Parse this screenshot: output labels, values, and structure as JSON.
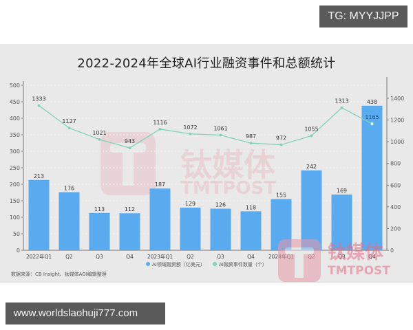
{
  "overlay": {
    "tag_label": "TG: MYYJJPP",
    "url_label": "www.worldslaohuji777.com"
  },
  "chart": {
    "title": "2022-2024年全球AI行业融资事件和总额统计",
    "source": "数据来源：CB Insight、钛媒体AGI编辑整理",
    "watermark_cn": "钛媒体",
    "watermark_en": "TMTPOST",
    "colors": {
      "bar": "#5aaaf0",
      "line": "#7dd3b5",
      "background": "#e9e9e9"
    }
  },
  "chart_data": {
    "type": "bar+line",
    "title": "2022-2024年全球AI行业融资事件和总额统计",
    "categories": [
      "2022年Q1",
      "Q2",
      "Q3",
      "Q4",
      "2023年Q1",
      "Q2",
      "Q3",
      "Q4",
      "2024年Q1",
      "Q2",
      "Q3",
      "Q4"
    ],
    "series": [
      {
        "name": "AI领域融资额（亿美元）",
        "type": "bar",
        "axis": "left",
        "values": [
          213,
          176,
          113,
          112,
          187,
          129,
          126,
          118,
          155,
          242,
          169,
          438
        ]
      },
      {
        "name": "AI融资事件数量（个）",
        "type": "line",
        "axis": "right",
        "values": [
          1333,
          1127,
          1021,
          943,
          1116,
          1072,
          1061,
          987,
          972,
          1055,
          1313,
          1165
        ]
      }
    ],
    "left_axis": {
      "ylim": [
        0,
        500
      ],
      "ticks": [
        0,
        50,
        100,
        150,
        200,
        250,
        300,
        350,
        400,
        450,
        500
      ]
    },
    "right_axis": {
      "ylim": [
        0,
        1400
      ],
      "ticks": [
        0,
        200,
        400,
        600,
        800,
        1000,
        1200,
        1400
      ]
    },
    "legend_position": "bottom",
    "grid": false,
    "source": "数据来源：CB Insight、钛媒体AGI编辑整理"
  }
}
